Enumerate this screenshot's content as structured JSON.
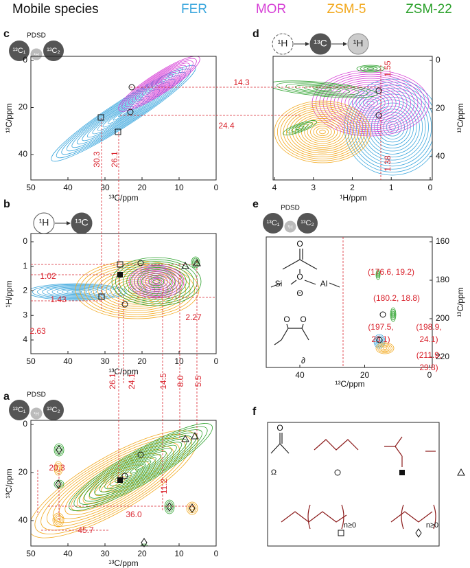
{
  "legend": {
    "title": "Mobile species",
    "items": [
      {
        "name": "FER",
        "color": "#3aa6dd"
      },
      {
        "name": "MOR",
        "color": "#d63fd6"
      },
      {
        "name": "ZSM-5",
        "color": "#f2a81d"
      },
      {
        "name": "ZSM-22",
        "color": "#2aa02a"
      }
    ]
  },
  "panels": [
    {
      "label": "c",
      "badge": {
        "top": "PDSD",
        "items": [
          "¹³C₁",
          "¹H",
          "¹³C₂"
        ]
      },
      "x_axis": {
        "title": "¹³C/ppm",
        "ticks": [
          50,
          40,
          30,
          20,
          10,
          0
        ]
      },
      "y_axis": {
        "title": "¹³C/ppm",
        "ticks": [
          0,
          20,
          40
        ]
      },
      "annotations": [
        "30.3",
        "26.1",
        "14.3",
        "24.4"
      ]
    },
    {
      "label": "d",
      "badge": {
        "items": [
          "¹H",
          "¹³C",
          "¹H"
        ]
      },
      "x_axis": {
        "title": "¹H/ppm",
        "ticks": [
          4,
          3,
          2,
          1,
          0
        ]
      },
      "y_axis": {
        "title": "¹³C/ppm",
        "ticks": [
          0,
          20,
          40
        ]
      },
      "annotations": [
        "1.55",
        "1.38"
      ]
    },
    {
      "label": "b",
      "badge": {
        "items": [
          "¹H",
          "¹³C"
        ]
      },
      "x_axis": {
        "title": "¹³C/ppm",
        "ticks": [
          50,
          40,
          30,
          20,
          10,
          0
        ]
      },
      "y_axis": {
        "title": "¹H/ppm",
        "ticks": [
          0,
          1,
          2,
          3,
          4
        ]
      },
      "annotations": [
        "1.02",
        "1.43",
        "2.63",
        "2.27",
        "26.1",
        "24.1",
        "14.5",
        "8.0",
        "5.5"
      ]
    },
    {
      "label": "e",
      "badge": {
        "top": "PDSD",
        "items": [
          "¹³C₁",
          "¹H",
          "¹³C₂"
        ]
      },
      "x_axis": {
        "title": "¹³C/ppm",
        "ticks": [
          40,
          20,
          0
        ]
      },
      "y_axis": {
        "title": "¹³C/ppm",
        "ticks": [
          160,
          180,
          200,
          220
        ]
      },
      "annotations": [
        "(176.6, 19.2)",
        "(180.2, 18.8)",
        "(197.5,",
        "23.1)",
        "(198.9,",
        "24.1)",
        "(211.9,",
        "29.8)"
      ],
      "structure_labels": [
        "O",
        "Si",
        "O",
        "Al",
        "Θ",
        "O",
        "O",
        "∂"
      ]
    },
    {
      "label": "a",
      "badge": {
        "top": "PDSD",
        "items": [
          "¹³C₁",
          "¹H",
          "¹³C₂"
        ]
      },
      "x_axis": {
        "title": "¹³C/ppm",
        "ticks": [
          50,
          40,
          30,
          20,
          10,
          0
        ]
      },
      "y_axis": {
        "title": "¹³C/ppm",
        "ticks": [
          0,
          20,
          40
        ]
      },
      "annotations": [
        "20.3",
        "11.2",
        "36.0",
        "45.7"
      ]
    },
    {
      "label": "f",
      "structure_labels": [
        "O",
        "Ω",
        "n≥0",
        "n≥0"
      ]
    }
  ]
}
